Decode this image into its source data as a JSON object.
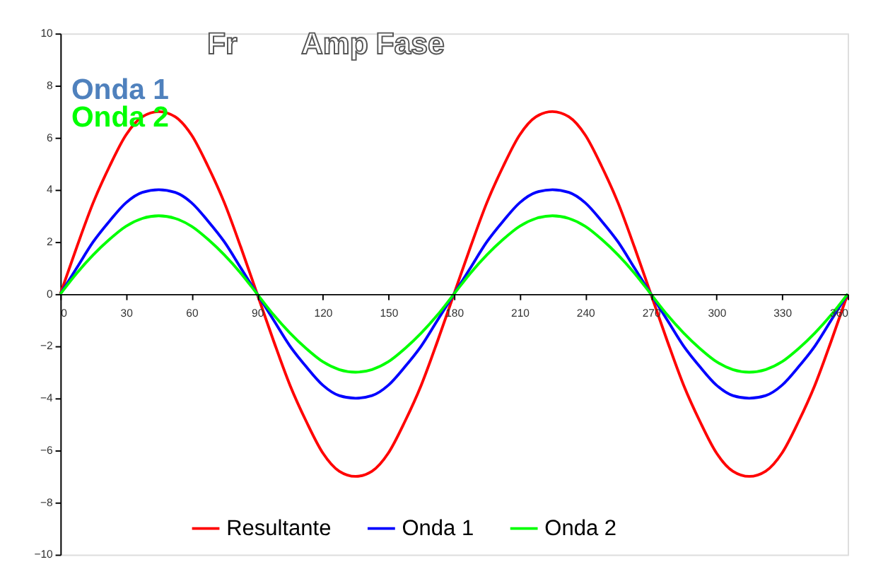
{
  "chart_data": {
    "type": "line",
    "x": [
      0,
      7.5,
      15,
      22.5,
      30,
      37.5,
      45,
      52.5,
      60,
      67.5,
      75,
      82.5,
      90,
      97.5,
      105,
      112.5,
      120,
      127.5,
      135,
      142.5,
      150,
      157.5,
      165,
      172.5,
      180,
      187.5,
      195,
      202.5,
      210,
      217.5,
      225,
      232.5,
      240,
      247.5,
      255,
      262.5,
      270,
      277.5,
      285,
      292.5,
      300,
      307.5,
      315,
      322.5,
      330,
      337.5,
      345,
      352.5,
      360
    ],
    "series": [
      {
        "name": "Resultante",
        "color": "#ff0000",
        "values": [
          0,
          1.8,
          3.5,
          4.9,
          6.1,
          6.8,
          7.0,
          6.8,
          6.1,
          4.9,
          3.5,
          1.8,
          0,
          -1.8,
          -3.5,
          -4.9,
          -6.1,
          -6.8,
          -7.0,
          -6.8,
          -6.1,
          -4.9,
          -3.5,
          -1.8,
          0,
          1.8,
          3.5,
          4.9,
          6.1,
          6.8,
          7.0,
          6.8,
          6.1,
          4.9,
          3.5,
          1.8,
          0,
          -1.8,
          -3.5,
          -4.9,
          -6.1,
          -6.8,
          -7.0,
          -6.8,
          -6.1,
          -4.9,
          -3.5,
          -1.8,
          0
        ]
      },
      {
        "name": "Onda 1",
        "color": "#0000ff",
        "values": [
          0,
          1.0,
          2.0,
          2.8,
          3.5,
          3.9,
          4.0,
          3.9,
          3.5,
          2.8,
          2.0,
          1.0,
          0,
          -1.0,
          -2.0,
          -2.8,
          -3.5,
          -3.9,
          -4.0,
          -3.9,
          -3.5,
          -2.8,
          -2.0,
          -1.0,
          0,
          1.0,
          2.0,
          2.8,
          3.5,
          3.9,
          4.0,
          3.9,
          3.5,
          2.8,
          2.0,
          1.0,
          0,
          -1.0,
          -2.0,
          -2.8,
          -3.5,
          -3.9,
          -4.0,
          -3.9,
          -3.5,
          -2.8,
          -2.0,
          -1.0,
          0
        ]
      },
      {
        "name": "Onda 2",
        "color": "#00ff00",
        "values": [
          0,
          0.8,
          1.5,
          2.1,
          2.6,
          2.9,
          3.0,
          2.9,
          2.6,
          2.1,
          1.5,
          0.8,
          0,
          -0.8,
          -1.5,
          -2.1,
          -2.6,
          -2.9,
          -3.0,
          -2.9,
          -2.6,
          -2.1,
          -1.5,
          -0.8,
          0,
          0.8,
          1.5,
          2.1,
          2.6,
          2.9,
          3.0,
          2.9,
          2.6,
          2.1,
          1.5,
          0.8,
          0,
          -0.8,
          -1.5,
          -2.1,
          -2.6,
          -2.9,
          -3.0,
          -2.9,
          -2.6,
          -2.1,
          -1.5,
          -0.8,
          0
        ]
      }
    ],
    "xlim": [
      0,
      360
    ],
    "xticks": [
      0,
      30,
      60,
      90,
      120,
      150,
      180,
      210,
      240,
      270,
      300,
      330,
      360
    ],
    "ylim": [
      -10,
      10
    ],
    "yticks": [
      -10,
      -8,
      -6,
      -4,
      -2,
      0,
      2,
      4,
      6,
      8,
      10
    ],
    "grid": false,
    "legend": "bottom",
    "marker": "none",
    "line_style": "solid",
    "annotations": [
      "Fr",
      "Amp",
      "Fase",
      "Onda 1",
      "Onda 2"
    ]
  }
}
